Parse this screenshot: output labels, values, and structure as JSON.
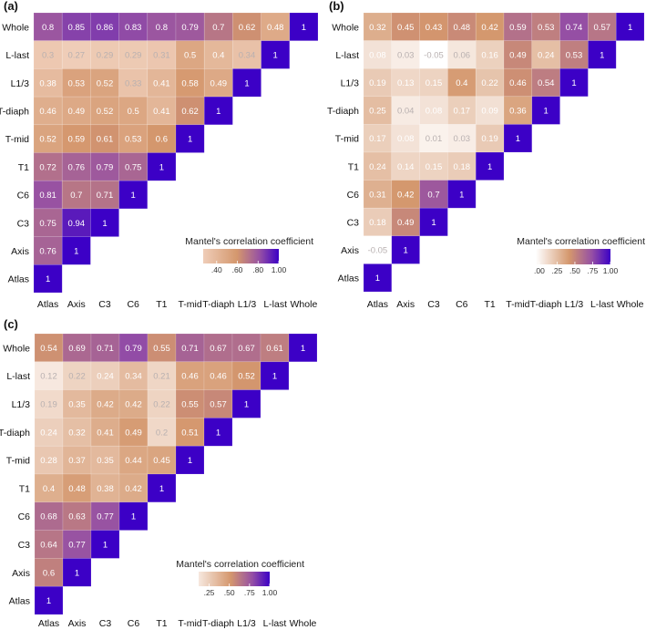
{
  "chart_data": [
    {
      "type": "heatmap",
      "panel": "(a)",
      "labels": [
        "Atlas",
        "Axis",
        "C3",
        "C6",
        "T1",
        "T-mid",
        "T-diaph",
        "L1/3",
        "L-last",
        "Whole"
      ],
      "rows": {
        "Whole": [
          0.8,
          0.85,
          0.86,
          0.83,
          0.8,
          0.79,
          0.7,
          0.62,
          0.48,
          1
        ],
        "L-last": [
          0.3,
          0.27,
          0.29,
          0.29,
          0.31,
          0.5,
          0.4,
          0.34,
          1
        ],
        "L1/3": [
          0.38,
          0.53,
          0.52,
          0.33,
          0.41,
          0.58,
          0.49,
          1
        ],
        "T-diaph": [
          0.46,
          0.49,
          0.52,
          0.5,
          0.41,
          0.62,
          1
        ],
        "T-mid": [
          0.52,
          0.59,
          0.61,
          0.53,
          0.6,
          1
        ],
        "T1": [
          0.72,
          0.76,
          0.79,
          0.75,
          1
        ],
        "C6": [
          0.81,
          0.7,
          0.71,
          1
        ],
        "C3": [
          0.75,
          0.94,
          1
        ],
        "Axis": [
          0.76,
          1
        ],
        "Atlas": [
          1
        ]
      },
      "legend": {
        "title": "Mantel's correlation coefficient",
        "range": [
          0.27,
          1.0
        ],
        "ticks": [
          0.4,
          0.6,
          0.8,
          1.0
        ],
        "tick_labels": [
          ".40",
          ".60",
          ".80",
          "1.00"
        ],
        "placement": "bottom-right"
      },
      "colors": {
        "low": "#efcdb8",
        "mid": "#d4976d",
        "high_mid": "#9650a4",
        "high": "#3c00c6"
      }
    },
    {
      "type": "heatmap",
      "panel": "(b)",
      "labels": [
        "Atlas",
        "Axis",
        "C3",
        "C6",
        "T1",
        "T-mid",
        "T-diaph",
        "L1/3",
        "L-last",
        "Whole"
      ],
      "rows": {
        "Whole": [
          0.32,
          0.45,
          0.43,
          0.48,
          0.42,
          0.59,
          0.53,
          0.74,
          0.57,
          1
        ],
        "L-last": [
          0.08,
          0.03,
          -0.05,
          0.06,
          0.16,
          0.49,
          0.24,
          0.53,
          1
        ],
        "L1/3": [
          0.19,
          0.13,
          0.15,
          0.4,
          0.22,
          0.46,
          0.54,
          1
        ],
        "T-diaph": [
          0.25,
          0.04,
          0.08,
          0.17,
          0.09,
          0.36,
          1
        ],
        "T-mid": [
          0.17,
          0.08,
          0.01,
          0.03,
          0.19,
          1
        ],
        "T1": [
          0.24,
          0.14,
          0.15,
          0.18,
          1
        ],
        "C6": [
          0.31,
          0.42,
          0.7,
          1
        ],
        "C3": [
          0.18,
          0.49,
          1
        ],
        "Axis": [
          -0.05,
          1
        ],
        "Atlas": [
          1
        ]
      },
      "legend": {
        "title": "Mantel's correlation coefficient",
        "range": [
          -0.05,
          1.0
        ],
        "ticks": [
          0,
          0.25,
          0.5,
          0.75,
          1.0
        ],
        "tick_labels": [
          ".00",
          ".25",
          ".50",
          ".75",
          "1.00"
        ],
        "placement": "bottom-right"
      },
      "colors": {
        "low": "#ffffff",
        "mid": "#d4976d",
        "high_mid": "#9650a4",
        "high": "#3c00c6"
      }
    },
    {
      "type": "heatmap",
      "panel": "(c)",
      "labels": [
        "Atlas",
        "Axis",
        "C3",
        "C6",
        "T1",
        "T-mid",
        "T-diaph",
        "L1/3",
        "L-last",
        "Whole"
      ],
      "rows": {
        "Whole": [
          0.54,
          0.69,
          0.71,
          0.79,
          0.55,
          0.71,
          0.67,
          0.67,
          0.61,
          1
        ],
        "L-last": [
          0.12,
          0.22,
          0.24,
          0.34,
          0.21,
          0.46,
          0.46,
          0.52,
          1
        ],
        "L1/3": [
          0.19,
          0.35,
          0.42,
          0.42,
          0.22,
          0.55,
          0.57,
          1
        ],
        "T-diaph": [
          0.24,
          0.32,
          0.41,
          0.49,
          0.2,
          0.51,
          1
        ],
        "T-mid": [
          0.28,
          0.37,
          0.35,
          0.44,
          0.45,
          1
        ],
        "T1": [
          0.4,
          0.48,
          0.38,
          0.42,
          1
        ],
        "C6": [
          0.68,
          0.63,
          0.77,
          1
        ],
        "C3": [
          0.64,
          0.77,
          1
        ],
        "Axis": [
          0.6,
          1
        ],
        "Atlas": [
          1
        ]
      },
      "legend": {
        "title": "Mantel's correlation coefficient",
        "range": [
          0.12,
          1.0
        ],
        "ticks": [
          0.25,
          0.5,
          0.75,
          1.0
        ],
        "tick_labels": [
          ".25",
          ".50",
          ".75",
          "1.00"
        ],
        "placement": "bottom-right"
      },
      "colors": {
        "low": "#f7e8df",
        "mid": "#d4976d",
        "high_mid": "#9650a4",
        "high": "#3c00c6"
      }
    }
  ]
}
